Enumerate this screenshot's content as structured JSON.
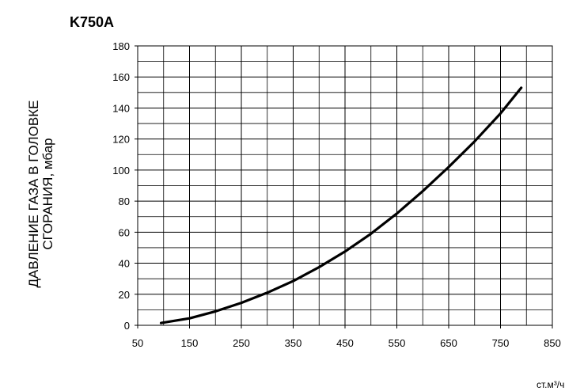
{
  "chart_data": {
    "type": "line",
    "title": "K750A",
    "xlabel": "ст.м³/ч",
    "ylabel_lines": [
      "ДАВЛЕНИЕ ГАЗА В ГОЛОВКЕ",
      "СГОРАНИЯ, мбар"
    ],
    "xlim": [
      50,
      850
    ],
    "ylim": [
      0,
      180
    ],
    "x_ticks": [
      50,
      150,
      250,
      350,
      450,
      550,
      650,
      750,
      850
    ],
    "y_ticks": [
      0,
      20,
      40,
      60,
      80,
      100,
      120,
      140,
      160,
      180
    ],
    "grid": true,
    "series": [
      {
        "x": [
          95,
          150,
          200,
          250,
          300,
          350,
          400,
          450,
          500,
          550,
          600,
          650,
          700,
          750,
          790
        ],
        "y": [
          1.5,
          4.5,
          9,
          14.5,
          21,
          28.5,
          37.5,
          47.5,
          59,
          72,
          86.5,
          102,
          118.5,
          136.5,
          153
        ]
      }
    ]
  }
}
